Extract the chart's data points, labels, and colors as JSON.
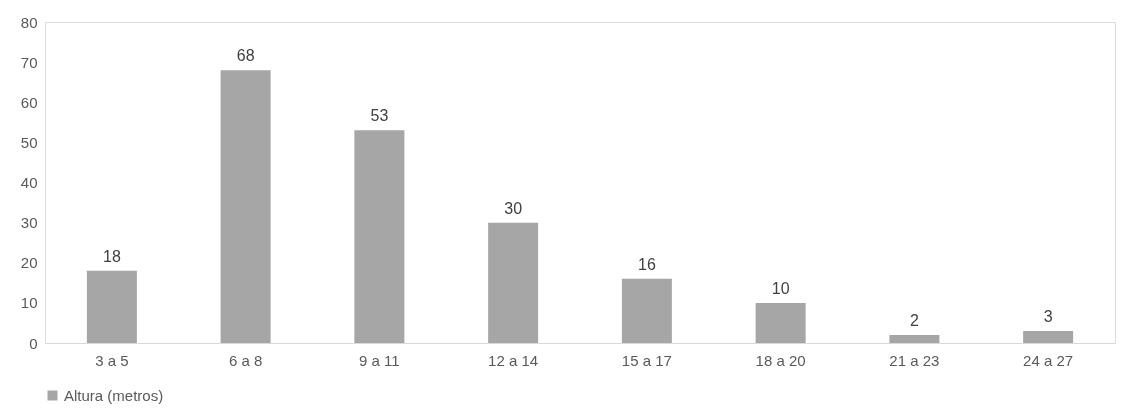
{
  "chart_data": {
    "type": "bar",
    "categories": [
      "3 a 5",
      "6 a 8",
      "9 a 11",
      "12 a 14",
      "15 a 17",
      "18 a 20",
      "21 a 23",
      "24 a 27"
    ],
    "series": [
      {
        "name": "Altura (metros)",
        "color": "#a6a6a6",
        "values": [
          18,
          68,
          53,
          30,
          16,
          10,
          2,
          3
        ]
      }
    ],
    "ylim": [
      0,
      80
    ],
    "yticks": [
      0,
      10,
      20,
      30,
      40,
      50,
      60,
      70,
      80
    ],
    "grid": false,
    "legend": "bottom",
    "data_labels": true
  }
}
